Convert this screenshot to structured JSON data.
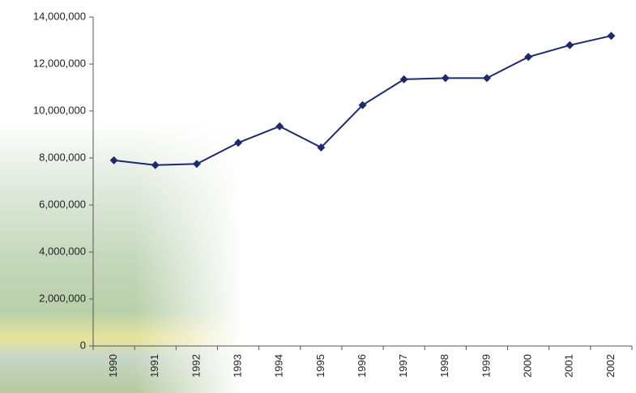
{
  "chart_data": {
    "type": "line",
    "categories": [
      "1990",
      "1991",
      "1992",
      "1993",
      "1994",
      "1995",
      "1996",
      "1997",
      "1998",
      "1999",
      "2000",
      "2001",
      "2002"
    ],
    "series": [
      {
        "color": "#1f2a6b",
        "values": [
          7900000,
          7700000,
          7750000,
          8650000,
          9350000,
          8450000,
          10250000,
          11350000,
          11400000,
          11400000,
          12300000,
          12800000,
          13200000
        ]
      }
    ],
    "ylim": [
      0,
      14000000
    ],
    "yticks": [
      {
        "value": 0,
        "label": "0"
      },
      {
        "value": 2000000,
        "label": "2,000,000"
      },
      {
        "value": 4000000,
        "label": "4,000,000"
      },
      {
        "value": 6000000,
        "label": "6,000,000"
      },
      {
        "value": 8000000,
        "label": "8,000,000"
      },
      {
        "value": 10000000,
        "label": "10,000,000"
      },
      {
        "value": 12000000,
        "label": "12,000,000"
      },
      {
        "value": 14000000,
        "label": "14,000,000"
      }
    ]
  }
}
